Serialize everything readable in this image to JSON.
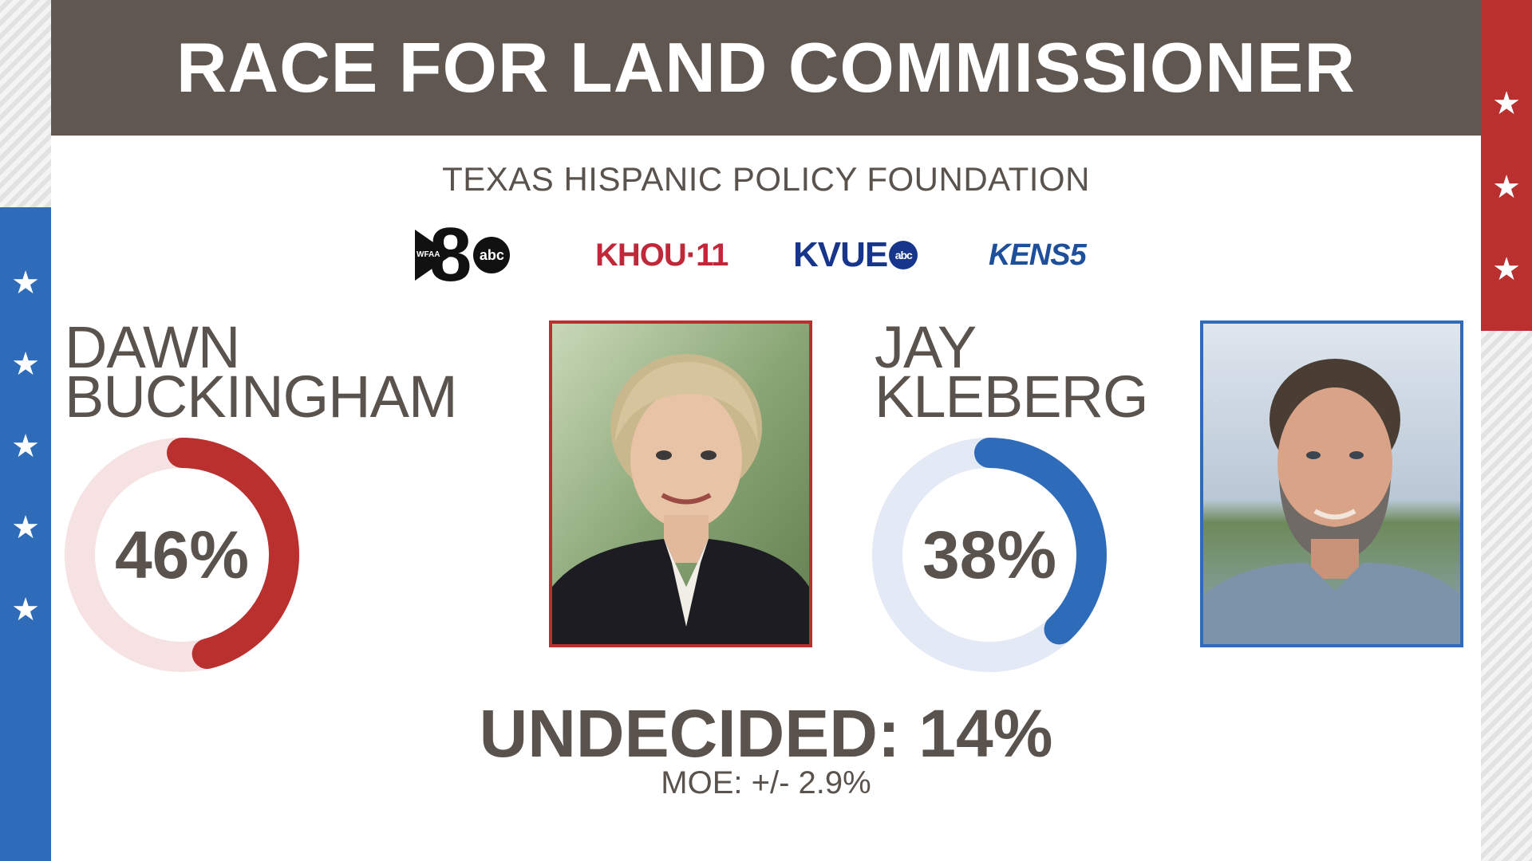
{
  "title": "RACE FOR LAND COMMISSIONER",
  "source": "TEXAS HISPANIC POLICY FOUNDATION",
  "logos": {
    "wfaa": {
      "small": "WFAA",
      "number": "8",
      "network": "abc"
    },
    "khou": "KHOU·11",
    "kvue": {
      "text": "KVUE",
      "network": "abc"
    },
    "kens": "KENS5"
  },
  "candidates": [
    {
      "first": "DAWN",
      "last": "BUCKINGHAM",
      "percent_label": "46%",
      "percent": 46,
      "color": "#b9302f",
      "track": "#f6e2e2"
    },
    {
      "first": "JAY",
      "last": "KLEBERG",
      "percent_label": "38%",
      "percent": 38,
      "color": "#2e6bb8",
      "track": "#e3e9f5"
    }
  ],
  "undecided": {
    "label": "UNDECIDED:",
    "value": "14%"
  },
  "moe": "MOE: +/- 2.9%",
  "colors": {
    "header": "#605751",
    "text": "#5a524d",
    "red": "#b9302f",
    "blue": "#2e6bb8"
  }
}
